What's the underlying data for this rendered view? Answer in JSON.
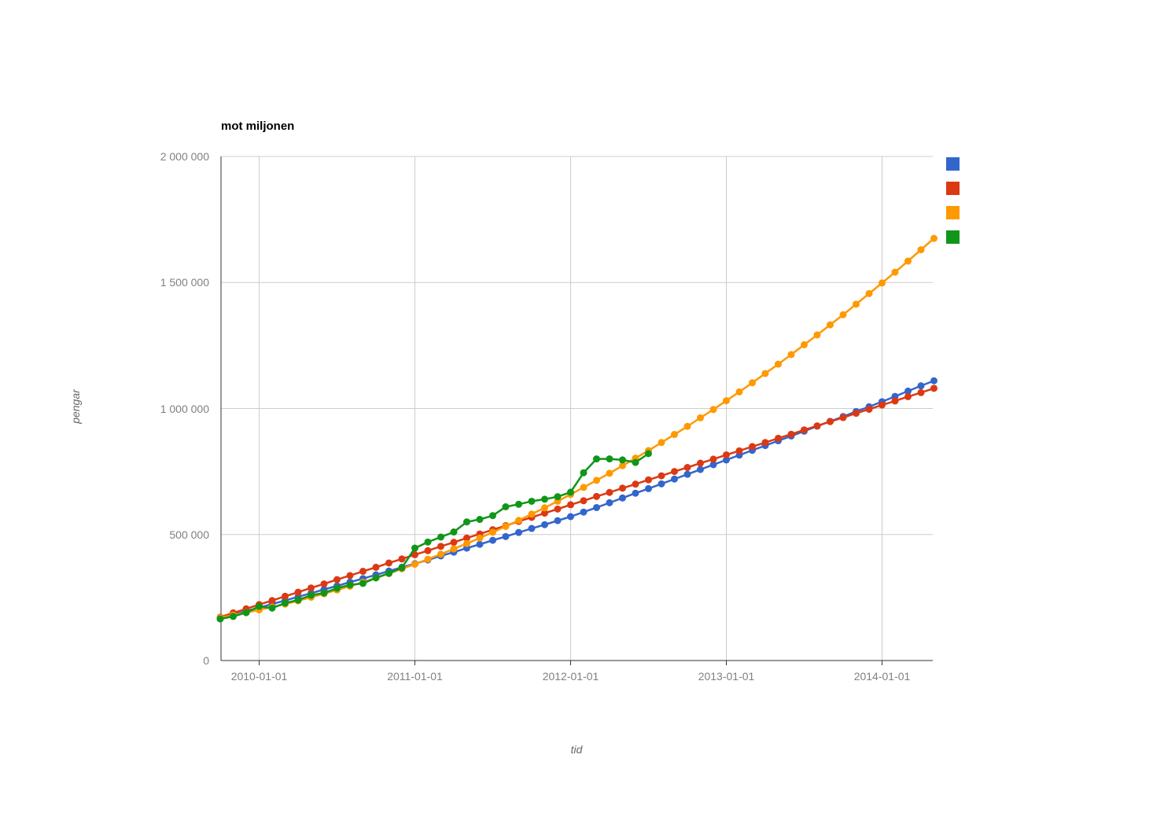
{
  "title": "mot miljonen",
  "y_axis": {
    "title": "pengar",
    "ticks": [
      {
        "label": "0",
        "value": 0
      },
      {
        "label": "500 000",
        "value": 500000
      },
      {
        "label": "1 000 000",
        "value": 1000000
      },
      {
        "label": "1 500 000",
        "value": 1500000
      },
      {
        "label": "2 000 000",
        "value": 2000000
      }
    ]
  },
  "x_axis": {
    "title": "tid",
    "ticks": [
      {
        "label": "2010-01-01",
        "month_index": 3
      },
      {
        "label": "2011-01-01",
        "month_index": 15
      },
      {
        "label": "2012-01-01",
        "month_index": 27
      },
      {
        "label": "2013-01-01",
        "month_index": 39
      },
      {
        "label": "2014-01-01",
        "month_index": 51
      }
    ]
  },
  "colors": {
    "grid": "#cccccc",
    "axis": "#333333",
    "tick_text": "#808080",
    "title_text": "#000000"
  },
  "legend": [
    {
      "label": "",
      "color": "#3366cc"
    },
    {
      "label": "",
      "color": "#dc3912"
    },
    {
      "label": "",
      "color": "#ff9900"
    },
    {
      "label": "",
      "color": "#109618"
    }
  ],
  "chart_data": {
    "type": "line",
    "title": "mot miljonen",
    "xlabel": "tid",
    "ylabel": "pengar",
    "ylim": [
      0,
      2000000
    ],
    "grid": true,
    "legend_position": "top-right",
    "point_markers": true,
    "x": [
      "2009-10",
      "2009-11",
      "2009-12",
      "2010-01",
      "2010-02",
      "2010-03",
      "2010-04",
      "2010-05",
      "2010-06",
      "2010-07",
      "2010-08",
      "2010-09",
      "2010-10",
      "2010-11",
      "2010-12",
      "2011-01",
      "2011-02",
      "2011-03",
      "2011-04",
      "2011-05",
      "2011-06",
      "2011-07",
      "2011-08",
      "2011-09",
      "2011-10",
      "2011-11",
      "2011-12",
      "2012-01",
      "2012-02",
      "2012-03",
      "2012-04",
      "2012-05",
      "2012-06",
      "2012-07",
      "2012-08",
      "2012-09",
      "2012-10",
      "2012-11",
      "2012-12",
      "2013-01",
      "2013-02",
      "2013-03",
      "2013-04",
      "2013-05",
      "2013-06",
      "2013-07",
      "2013-08",
      "2013-09",
      "2013-10",
      "2013-11",
      "2013-12",
      "2014-01",
      "2014-02",
      "2014-03",
      "2014-04",
      "2014-05"
    ],
    "series": [
      {
        "name": "blue",
        "label": "",
        "color": "#3366cc",
        "values": [
          168000,
          182000,
          196000,
          210000,
          224000,
          238000,
          253000,
          267000,
          282000,
          296000,
          311000,
          325000,
          340000,
          355000,
          370000,
          384000,
          399000,
          415000,
          430000,
          446000,
          461000,
          477000,
          492000,
          508000,
          524000,
          539000,
          555000,
          571000,
          589000,
          607000,
          626000,
          645000,
          664000,
          682000,
          701000,
          720000,
          739000,
          758000,
          777000,
          796000,
          815000,
          834000,
          853000,
          872000,
          891000,
          910000,
          930000,
          949000,
          968000,
          988000,
          1007000,
          1027000,
          1048000,
          1069000,
          1090000,
          1110000
        ]
      },
      {
        "name": "red",
        "label": "",
        "color": "#dc3912",
        "values": [
          172000,
          189000,
          205000,
          222000,
          238000,
          255000,
          271000,
          288000,
          304000,
          321000,
          337000,
          354000,
          370000,
          387000,
          403000,
          420000,
          436000,
          453000,
          469000,
          486000,
          502000,
          519000,
          535000,
          552000,
          568000,
          585000,
          601000,
          618000,
          634000,
          651000,
          667000,
          684000,
          700000,
          717000,
          733000,
          750000,
          766000,
          783000,
          799000,
          816000,
          832000,
          849000,
          865000,
          882000,
          898000,
          915000,
          931000,
          948000,
          964000,
          981000,
          997000,
          1014000,
          1030000,
          1047000,
          1063000,
          1080000
        ]
      },
      {
        "name": "orange",
        "label": "",
        "color": "#ff9900",
        "values": [
          170000,
          180000,
          190000,
          201000,
          212000,
          224000,
          237000,
          251000,
          265000,
          280000,
          295000,
          311000,
          328000,
          345000,
          364000,
          382000,
          402000,
          422000,
          443000,
          464000,
          486000,
          509000,
          532000,
          556000,
          581000,
          606000,
          632000,
          659000,
          687000,
          715000,
          743000,
          773000,
          803000,
          833000,
          865000,
          897000,
          929000,
          963000,
          996000,
          1031000,
          1066000,
          1102000,
          1139000,
          1176000,
          1214000,
          1253000,
          1292000,
          1332000,
          1372000,
          1414000,
          1456000,
          1498000,
          1541000,
          1585000,
          1630000,
          1675000
        ]
      },
      {
        "name": "green",
        "label": "",
        "color": "#109618",
        "values": [
          165000,
          175000,
          190000,
          215000,
          208000,
          228000,
          240000,
          259000,
          268000,
          287000,
          300000,
          306000,
          328000,
          346000,
          368000,
          446000,
          470000,
          490000,
          510000,
          550000,
          560000,
          575000,
          610000,
          620000,
          632000,
          640000,
          650000,
          668000,
          745000,
          800000,
          800000,
          796000,
          786000,
          821000
        ]
      }
    ]
  }
}
